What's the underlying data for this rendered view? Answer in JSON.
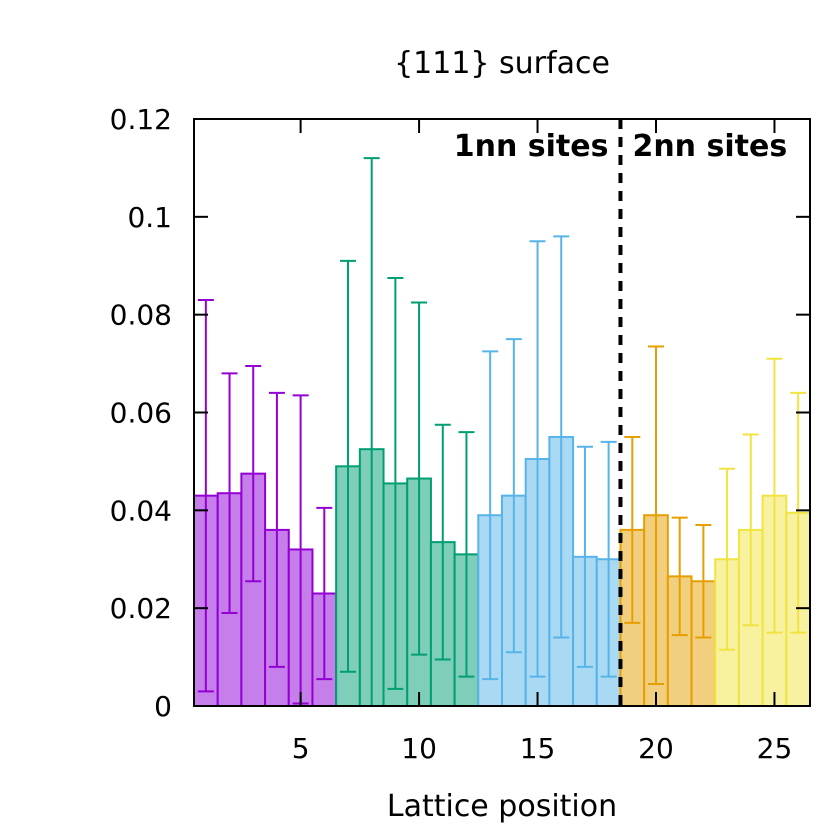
{
  "chart_data": {
    "type": "bar",
    "title": "{111} surface",
    "xlabel": "Lattice position",
    "ylabel": "",
    "xlim": [
      0.5,
      26.5
    ],
    "ylim": [
      0,
      0.12
    ],
    "x_ticks": [
      5,
      10,
      15,
      20,
      25
    ],
    "y_ticks": [
      0,
      0.02,
      0.04,
      0.06,
      0.08,
      0.1,
      0.12
    ],
    "y_tick_labels": [
      "0",
      "0.02",
      "0.04",
      "0.06",
      "0.08",
      "0.1",
      "0.12"
    ],
    "grid": false,
    "x": [
      1,
      2,
      3,
      4,
      5,
      6,
      7,
      8,
      9,
      10,
      11,
      12,
      13,
      14,
      15,
      16,
      17,
      18,
      19,
      20,
      21,
      22,
      23,
      24,
      25,
      26
    ],
    "values": [
      0.043,
      0.0435,
      0.0475,
      0.036,
      0.032,
      0.023,
      0.049,
      0.0525,
      0.0455,
      0.0465,
      0.0335,
      0.031,
      0.039,
      0.043,
      0.0505,
      0.055,
      0.0305,
      0.03,
      0.036,
      0.039,
      0.0265,
      0.0255,
      0.03,
      0.036,
      0.043,
      0.0395
    ],
    "errors": [
      0.04,
      0.0245,
      0.022,
      0.028,
      0.0315,
      0.0175,
      0.042,
      0.0595,
      0.042,
      0.036,
      0.024,
      0.025,
      0.0335,
      0.032,
      0.0445,
      0.041,
      0.0225,
      0.024,
      0.019,
      0.0345,
      0.012,
      0.0115,
      0.0185,
      0.0195,
      0.028,
      0.0245
    ],
    "groups": [
      {
        "start": 1,
        "end": 6,
        "color": "#9400D3",
        "fill": "#C67EEB"
      },
      {
        "start": 7,
        "end": 12,
        "color": "#009E73",
        "fill": "#7FCEB9"
      },
      {
        "start": 13,
        "end": 18,
        "color": "#56B4E9",
        "fill": "#AAD9F4"
      },
      {
        "start": 19,
        "end": 22,
        "color": "#E69F00",
        "fill": "#F2CF7F"
      },
      {
        "start": 23,
        "end": 26,
        "color": "#F0E442",
        "fill": "#F7F1A0"
      }
    ],
    "divider_x": 18.5,
    "annotations": {
      "left": "1nn sites",
      "right": "2nn sites"
    }
  }
}
